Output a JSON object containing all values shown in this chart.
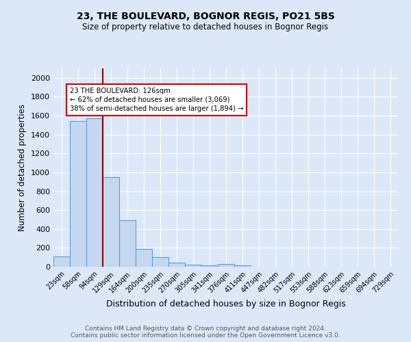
{
  "title1": "23, THE BOULEVARD, BOGNOR REGIS, PO21 5BS",
  "title2": "Size of property relative to detached houses in Bognor Regis",
  "xlabel": "Distribution of detached houses by size in Bognor Regis",
  "ylabel": "Number of detached properties",
  "bar_labels": [
    "23sqm",
    "58sqm",
    "94sqm",
    "129sqm",
    "164sqm",
    "200sqm",
    "235sqm",
    "270sqm",
    "305sqm",
    "341sqm",
    "376sqm",
    "411sqm",
    "447sqm",
    "482sqm",
    "517sqm",
    "553sqm",
    "588sqm",
    "623sqm",
    "659sqm",
    "694sqm",
    "729sqm"
  ],
  "bar_values": [
    110,
    1540,
    1570,
    950,
    490,
    185,
    100,
    45,
    25,
    15,
    30,
    15,
    0,
    0,
    0,
    0,
    0,
    0,
    0,
    0,
    0
  ],
  "bar_color": "#c5d8f0",
  "bar_edge_color": "#5b9bd5",
  "vline_color": "#8b0000",
  "annotation_text": "23 THE BOULEVARD: 126sqm\n← 62% of detached houses are smaller (3,069)\n38% of semi-detached houses are larger (1,894) →",
  "ylim": [
    0,
    2100
  ],
  "yticks": [
    0,
    200,
    400,
    600,
    800,
    1000,
    1200,
    1400,
    1600,
    1800,
    2000
  ],
  "background_color": "#dce8f8",
  "plot_bg_color": "#dce8f8",
  "footer_line1": "Contains HM Land Registry data © Crown copyright and database right 2024.",
  "footer_line2": "Contains public sector information licensed under the Open Government Licence v3.0."
}
